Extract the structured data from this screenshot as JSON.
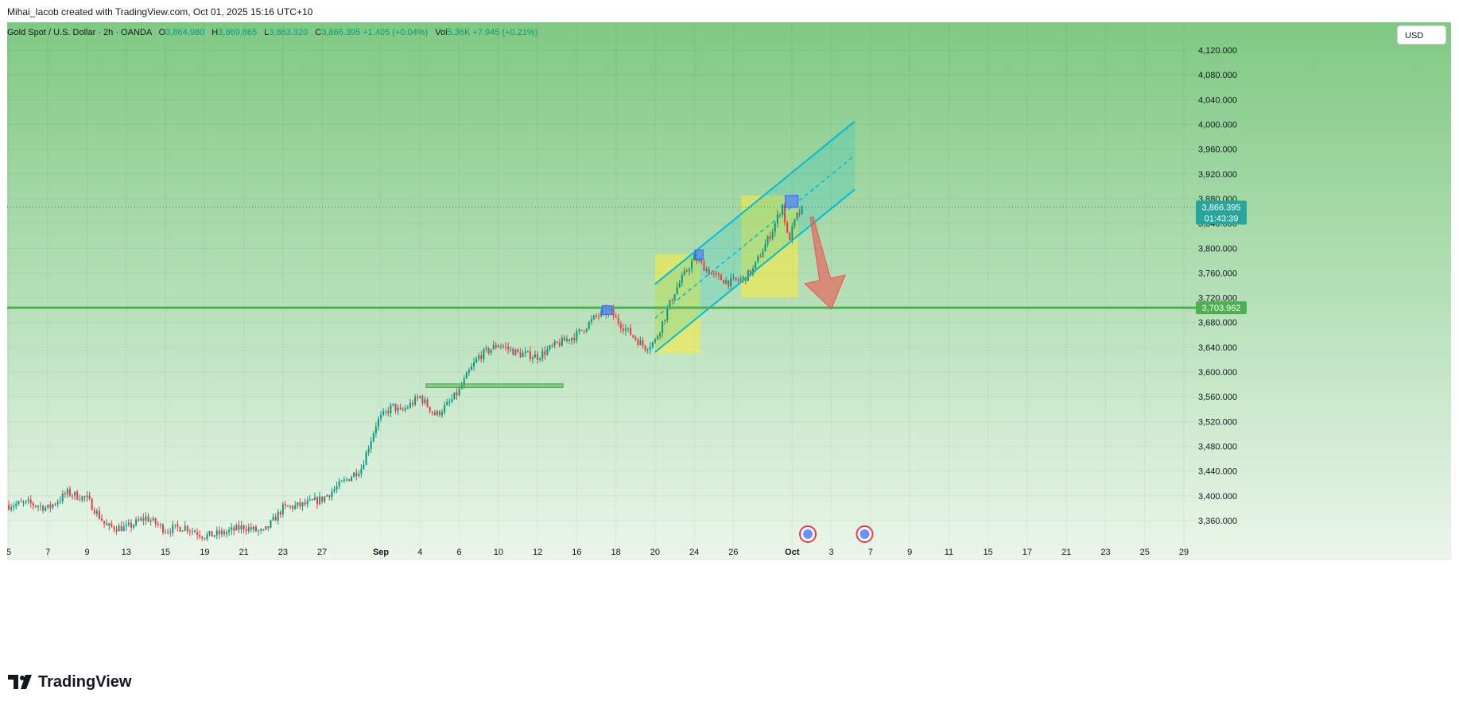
{
  "header": {
    "caption": "Mihai_Iacob created with TradingView.com, Oct 01, 2025 15:16 UTC+10"
  },
  "legend": {
    "symbol": "Gold Spot / U.S. Dollar · 2h · OANDA",
    "open_label": "O",
    "open": "3,864.980",
    "high_label": "H",
    "high": "3,869.865",
    "low_label": "L",
    "low": "3,863.320",
    "close_label": "C",
    "close": "3,866.395",
    "change": "+1.405 (+0.04%)",
    "vol_label": "Vol",
    "vol": "5.36K",
    "vol_change": "+7.945 (+0.21%)"
  },
  "currency": "USD",
  "price_badge": {
    "price": "3,866.395",
    "countdown": "01:43:39",
    "color": "#26a69a"
  },
  "level_badge": {
    "price": "3,703.962",
    "color": "#4caf50"
  },
  "logo_text": "TradingView",
  "colors": {
    "background_top": "#7fc983",
    "background_bottom": "#eaf6ea",
    "up_candle": "#089981",
    "down_candle": "#f23645",
    "channel": "#00bcd4",
    "highlight": "#ffeb3b",
    "arrow": "#ef5350",
    "level": "#4caf50",
    "marker": "#5b8def"
  },
  "chart_data": {
    "type": "candlestick",
    "timeframe": "2h",
    "y_axis": {
      "ylim": [
        3320,
        4140
      ],
      "ticks": [
        "3,360.000",
        "3,400.000",
        "3,440.000",
        "3,480.000",
        "3,520.000",
        "3,560.000",
        "3,600.000",
        "3,640.000",
        "3,680.000",
        "3,720.000",
        "3,760.000",
        "3,800.000",
        "3,840.000",
        "3,880.000",
        "3,920.000",
        "3,960.000",
        "4,000.000",
        "4,040.000",
        "4,080.000",
        "4,120.000"
      ],
      "tick_values": [
        3360,
        3400,
        3440,
        3480,
        3520,
        3560,
        3600,
        3640,
        3680,
        3720,
        3760,
        3800,
        3840,
        3880,
        3920,
        3960,
        4000,
        4040,
        4080,
        4120
      ]
    },
    "x_axis": {
      "tick_labels": [
        "5",
        "7",
        "9",
        "13",
        "15",
        "19",
        "21",
        "23",
        "27",
        "Sep",
        "4",
        "6",
        "10",
        "12",
        "16",
        "18",
        "20",
        "24",
        "26",
        "Oct",
        "3",
        "7",
        "9",
        "11",
        "15",
        "17",
        "21",
        "23",
        "25",
        "29"
      ],
      "tick_index": [
        0,
        2,
        4,
        6,
        8,
        10,
        12,
        14,
        16,
        19,
        21,
        23,
        25,
        27,
        29,
        31,
        33,
        35,
        37,
        40,
        42,
        44,
        46,
        48,
        50,
        52,
        54,
        56,
        58,
        60
      ]
    },
    "series_anchors": [
      {
        "i": 0,
        "p": 3385
      },
      {
        "i": 1,
        "p": 3388
      },
      {
        "i": 2,
        "p": 3380
      },
      {
        "i": 3,
        "p": 3405
      },
      {
        "i": 4,
        "p": 3395
      },
      {
        "i": 5,
        "p": 3350
      },
      {
        "i": 6,
        "p": 3348
      },
      {
        "i": 7,
        "p": 3365
      },
      {
        "i": 8,
        "p": 3345
      },
      {
        "i": 9,
        "p": 3350
      },
      {
        "i": 10,
        "p": 3335
      },
      {
        "i": 11,
        "p": 3340
      },
      {
        "i": 12,
        "p": 3350
      },
      {
        "i": 13,
        "p": 3340
      },
      {
        "i": 14,
        "p": 3380
      },
      {
        "i": 15,
        "p": 3385
      },
      {
        "i": 16,
        "p": 3395
      },
      {
        "i": 17,
        "p": 3420
      },
      {
        "i": 18,
        "p": 3445
      },
      {
        "i": 18.8,
        "p": 3520
      },
      {
        "i": 19.6,
        "p": 3545
      },
      {
        "i": 20,
        "p": 3535
      },
      {
        "i": 21,
        "p": 3560
      },
      {
        "i": 21.8,
        "p": 3530
      },
      {
        "i": 22.5,
        "p": 3550
      },
      {
        "i": 23,
        "p": 3570
      },
      {
        "i": 23.5,
        "p": 3600
      },
      {
        "i": 24,
        "p": 3625
      },
      {
        "i": 25,
        "p": 3645
      },
      {
        "i": 26,
        "p": 3630
      },
      {
        "i": 27,
        "p": 3625
      },
      {
        "i": 28,
        "p": 3645
      },
      {
        "i": 29,
        "p": 3660
      },
      {
        "i": 30,
        "p": 3690
      },
      {
        "i": 30.7,
        "p": 3700
      },
      {
        "i": 31,
        "p": 3685
      },
      {
        "i": 31.8,
        "p": 3660
      },
      {
        "i": 32.5,
        "p": 3640
      },
      {
        "i": 33,
        "p": 3650
      },
      {
        "i": 34,
        "p": 3730
      },
      {
        "i": 35,
        "p": 3785
      },
      {
        "i": 35.5,
        "p": 3770
      },
      {
        "i": 36,
        "p": 3755
      },
      {
        "i": 36.8,
        "p": 3745
      },
      {
        "i": 37.5,
        "p": 3750
      },
      {
        "i": 38,
        "p": 3765
      },
      {
        "i": 39,
        "p": 3830
      },
      {
        "i": 39.5,
        "p": 3870
      },
      {
        "i": 39.8,
        "p": 3810
      },
      {
        "i": 40.2,
        "p": 3850
      },
      {
        "i": 40.6,
        "p": 3866
      }
    ],
    "last_close": 3866.395,
    "support_level": 3703.962,
    "annotations": {
      "channel": {
        "start": {
          "i": 33,
          "p": 3632
        },
        "end": {
          "i": 43.2,
          "p": 3895
        },
        "width": 110
      },
      "highlight_boxes": [
        {
          "i0": 33,
          "i1": 35.3,
          "p0": 3630,
          "p1": 3790
        },
        {
          "i0": 37.4,
          "p0": 3720,
          "i1": 40.3,
          "p1": 3885
        }
      ],
      "markers": [
        {
          "i0": 30.3,
          "i1": 30.8,
          "p0": 3693,
          "p1": 3707
        },
        {
          "i0": 35.05,
          "i1": 35.45,
          "p0": 3782,
          "p1": 3797
        },
        {
          "i0": 39.65,
          "i1": 40.3,
          "p0": 3866,
          "p1": 3885
        }
      ],
      "zone": {
        "i0": 21.3,
        "i1": 28.3,
        "p0": 3575,
        "p1": 3581
      },
      "arrow": {
        "from": {
          "i": 41,
          "p": 3850
        },
        "to": {
          "i": 42,
          "p": 3702
        }
      },
      "event_icons": [
        {
          "i": 40.8
        },
        {
          "i": 43.7
        }
      ]
    }
  }
}
